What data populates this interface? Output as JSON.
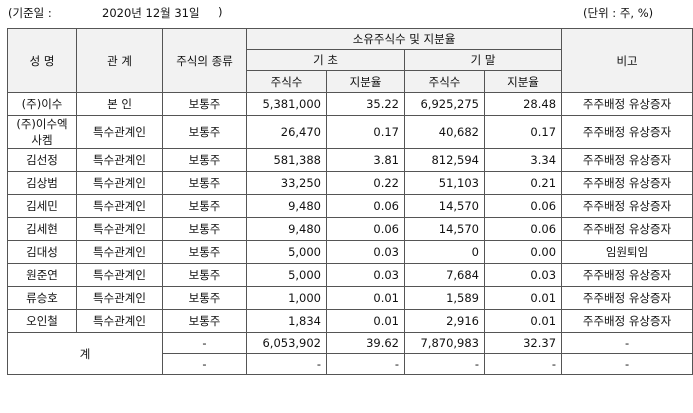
{
  "header": {
    "basis_label": "(기준일 :",
    "basis_date": "2020년 12월 31일",
    "basis_close": ")",
    "unit": "(단위 : 주, %)"
  },
  "columns": {
    "name": "성 명",
    "relation": "관 계",
    "stock_type": "주식의 종류",
    "holding_group": "소유주식수 및 지분율",
    "start": "기 초",
    "end": "기 말",
    "shares": "주식수",
    "ratio": "지분율",
    "note": "비고"
  },
  "rows": [
    {
      "name": "(주)이수",
      "relation": "본 인",
      "type": "보통주",
      "start_shares": "5,381,000",
      "start_ratio": "35.22",
      "end_shares": "6,925,275",
      "end_ratio": "28.48",
      "note": "주주배정 유상증자"
    },
    {
      "name": "(주)이수엑사켐",
      "relation": "특수관계인",
      "type": "보통주",
      "start_shares": "26,470",
      "start_ratio": "0.17",
      "end_shares": "40,682",
      "end_ratio": "0.17",
      "note": "주주배정 유상증자"
    },
    {
      "name": "김선정",
      "relation": "특수관계인",
      "type": "보통주",
      "start_shares": "581,388",
      "start_ratio": "3.81",
      "end_shares": "812,594",
      "end_ratio": "3.34",
      "note": "주주배정 유상증자"
    },
    {
      "name": "김상범",
      "relation": "특수관계인",
      "type": "보통주",
      "start_shares": "33,250",
      "start_ratio": "0.22",
      "end_shares": "51,103",
      "end_ratio": "0.21",
      "note": "주주배정 유상증자"
    },
    {
      "name": "김세민",
      "relation": "특수관계인",
      "type": "보통주",
      "start_shares": "9,480",
      "start_ratio": "0.06",
      "end_shares": "14,570",
      "end_ratio": "0.06",
      "note": "주주배정 유상증자"
    },
    {
      "name": "김세현",
      "relation": "특수관계인",
      "type": "보통주",
      "start_shares": "9,480",
      "start_ratio": "0.06",
      "end_shares": "14,570",
      "end_ratio": "0.06",
      "note": "주주배정 유상증자"
    },
    {
      "name": "김대성",
      "relation": "특수관계인",
      "type": "보통주",
      "start_shares": "5,000",
      "start_ratio": "0.03",
      "end_shares": "0",
      "end_ratio": "0.00",
      "note": "임원퇴임"
    },
    {
      "name": "원준연",
      "relation": "특수관계인",
      "type": "보통주",
      "start_shares": "5,000",
      "start_ratio": "0.03",
      "end_shares": "7,684",
      "end_ratio": "0.03",
      "note": "주주배정 유상증자"
    },
    {
      "name": "류승호",
      "relation": "특수관계인",
      "type": "보통주",
      "start_shares": "1,000",
      "start_ratio": "0.01",
      "end_shares": "1,589",
      "end_ratio": "0.01",
      "note": "주주배정 유상증자"
    },
    {
      "name": "오인철",
      "relation": "특수관계인",
      "type": "보통주",
      "start_shares": "1,834",
      "start_ratio": "0.01",
      "end_shares": "2,916",
      "end_ratio": "0.01",
      "note": "주주배정 유상증자"
    }
  ],
  "total": {
    "label": "계",
    "rows": [
      {
        "type": "-",
        "start_shares": "6,053,902",
        "start_ratio": "39.62",
        "end_shares": "7,870,983",
        "end_ratio": "32.37",
        "note": "-"
      },
      {
        "type": "-",
        "start_shares": "-",
        "start_ratio": "-",
        "end_shares": "-",
        "end_ratio": "-",
        "note": "-"
      }
    ]
  }
}
